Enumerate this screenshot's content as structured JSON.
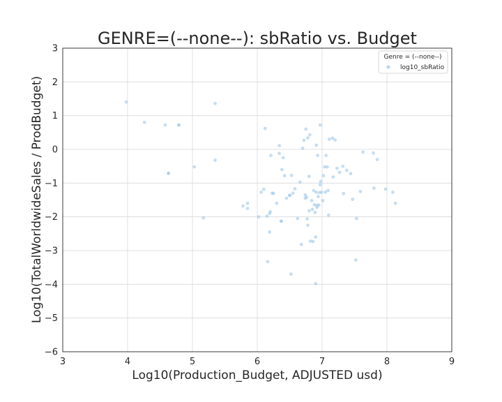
{
  "chart_data": {
    "type": "scatter",
    "title": "GENRE=(--none--): sbRatio vs. Budget",
    "xlabel": "Log10(Production_Budget, ADJUSTED usd)",
    "ylabel": "Log10(TotalWorldwideSales / ProdBudget)",
    "xlim": [
      3,
      9
    ],
    "ylim": [
      -6,
      3
    ],
    "xticks": [
      "3",
      "4",
      "5",
      "6",
      "7",
      "8",
      "9"
    ],
    "yticks": [
      "3",
      "2",
      "1",
      "0",
      "−1",
      "−2",
      "−3",
      "−4",
      "−5",
      "−6"
    ],
    "grid": true,
    "legend": {
      "title": "Genre = (--none--)",
      "placement": "top-right",
      "entries": [
        "log10_sbRatio"
      ]
    },
    "series": [
      {
        "name": "log10_sbRatio",
        "color": "#9ec8e8",
        "points": [
          [
            3.98,
            1.4
          ],
          [
            4.26,
            0.8
          ],
          [
            4.58,
            0.72
          ],
          [
            4.79,
            0.72
          ],
          [
            4.79,
            0.72
          ],
          [
            4.63,
            -0.71
          ],
          [
            4.63,
            -0.71
          ],
          [
            5.03,
            -0.52
          ],
          [
            5.35,
            1.36
          ],
          [
            5.35,
            -0.32
          ],
          [
            5.17,
            -2.03
          ],
          [
            5.78,
            -1.68
          ],
          [
            5.85,
            -1.75
          ],
          [
            5.85,
            -1.6
          ],
          [
            6.02,
            -2.0
          ],
          [
            6.06,
            -1.27
          ],
          [
            6.1,
            -1.18
          ],
          [
            6.12,
            0.62
          ],
          [
            6.15,
            -1.98
          ],
          [
            6.16,
            -3.33
          ],
          [
            6.19,
            -2.45
          ],
          [
            6.19,
            -1.9
          ],
          [
            6.2,
            -1.85
          ],
          [
            6.21,
            -0.18
          ],
          [
            6.23,
            -1.3
          ],
          [
            6.25,
            -1.31
          ],
          [
            6.3,
            -1.6
          ],
          [
            6.34,
            -0.12
          ],
          [
            6.34,
            0.11
          ],
          [
            6.37,
            -2.13
          ],
          [
            6.37,
            -2.13
          ],
          [
            6.38,
            -0.6
          ],
          [
            6.4,
            -0.25
          ],
          [
            6.42,
            -0.78
          ],
          [
            6.45,
            -1.45
          ],
          [
            6.5,
            -1.37
          ],
          [
            6.5,
            -1.36
          ],
          [
            6.52,
            -3.7
          ],
          [
            6.53,
            -0.77
          ],
          [
            6.55,
            -1.3
          ],
          [
            6.58,
            -1.17
          ],
          [
            6.62,
            -2.05
          ],
          [
            6.66,
            -0.97
          ],
          [
            6.68,
            -2.82
          ],
          [
            6.7,
            0.03
          ],
          [
            6.72,
            0.27
          ],
          [
            6.74,
            -1.35
          ],
          [
            6.74,
            -1.45
          ],
          [
            6.75,
            0.6
          ],
          [
            6.76,
            -1.42
          ],
          [
            6.77,
            -2.06
          ],
          [
            6.78,
            -2.25
          ],
          [
            6.78,
            0.34
          ],
          [
            6.8,
            -1.82
          ],
          [
            6.8,
            -0.8
          ],
          [
            6.81,
            0.43
          ],
          [
            6.82,
            -2.72
          ],
          [
            6.84,
            -1.52
          ],
          [
            6.85,
            -1.78
          ],
          [
            6.86,
            -2.73
          ],
          [
            6.87,
            -1.22
          ],
          [
            6.88,
            -1.64
          ],
          [
            6.89,
            -1.87
          ],
          [
            6.9,
            -3.98
          ],
          [
            6.9,
            -2.6
          ],
          [
            6.91,
            0.12
          ],
          [
            6.91,
            -1.27
          ],
          [
            6.92,
            -1.72
          ],
          [
            6.92,
            -1.66
          ],
          [
            6.93,
            -0.18
          ],
          [
            6.94,
            -1.4
          ],
          [
            6.95,
            -1.65
          ],
          [
            6.96,
            -1.28
          ],
          [
            6.97,
            0.72
          ],
          [
            6.97,
            -1.05
          ],
          [
            6.98,
            -0.95
          ],
          [
            6.99,
            -1.27
          ],
          [
            7.01,
            -1.52
          ],
          [
            7.02,
            -0.78
          ],
          [
            7.04,
            -0.52
          ],
          [
            7.05,
            -1.27
          ],
          [
            7.06,
            -0.18
          ],
          [
            7.08,
            -0.52
          ],
          [
            7.09,
            -1.22
          ],
          [
            7.1,
            -1.95
          ],
          [
            7.11,
            0.3
          ],
          [
            7.16,
            0.33
          ],
          [
            7.17,
            -0.82
          ],
          [
            7.2,
            0.28
          ],
          [
            7.23,
            -0.56
          ],
          [
            7.27,
            -0.68
          ],
          [
            7.32,
            -0.5
          ],
          [
            7.33,
            -1.31
          ],
          [
            7.38,
            -0.62
          ],
          [
            7.44,
            -0.72
          ],
          [
            7.47,
            -1.48
          ],
          [
            7.52,
            -3.28
          ],
          [
            7.53,
            -2.05
          ],
          [
            7.59,
            -1.25
          ],
          [
            7.63,
            -0.08
          ],
          [
            7.79,
            -0.11
          ],
          [
            7.8,
            -1.15
          ],
          [
            7.85,
            -0.3
          ],
          [
            7.98,
            -1.18
          ],
          [
            8.09,
            -1.27
          ],
          [
            8.13,
            -1.6
          ]
        ]
      }
    ]
  }
}
